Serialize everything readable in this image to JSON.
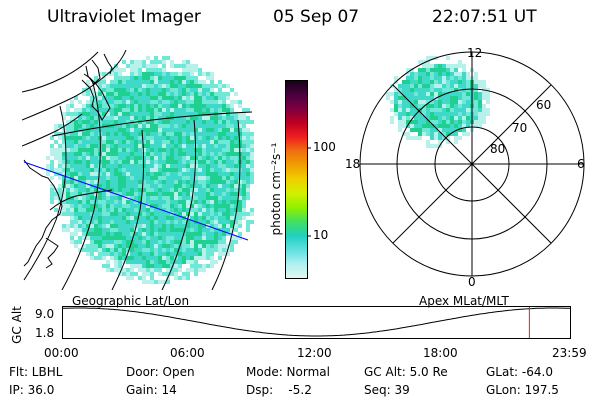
{
  "header": {
    "instrument": "Ultraviolet Imager",
    "date": "05 Sep 07",
    "time": "22:07:51 UT"
  },
  "colorbar": {
    "label": "photon cm⁻²s⁻¹",
    "ticks": [
      "100",
      "10"
    ],
    "colors": [
      "#1a0018",
      "#4a0040",
      "#800040",
      "#c00020",
      "#f02020",
      "#f07010",
      "#f0a000",
      "#f0d000",
      "#d0f000",
      "#90f000",
      "#40e060",
      "#20d0c0",
      "#60e0e0",
      "#b0f0f0",
      "#e0f8f0"
    ]
  },
  "geo_map": {
    "label": "Geographic Lat/Lon",
    "grid_color": "#000000",
    "track_color": "#0000ff",
    "aurora_colors": [
      "#40d8c8",
      "#20d090",
      "#70e8d8",
      "#b8f0ec"
    ]
  },
  "polar_map": {
    "label": "Apex MLat/MLT",
    "mlt_labels": {
      "top": "12",
      "left": "18",
      "right": "6",
      "bottom": "0"
    },
    "lat_labels": [
      "60",
      "70",
      "80"
    ]
  },
  "orbit_plot": {
    "ylabel": "GC Alt",
    "ytick_top": "9.0",
    "ytick_bottom": "1.8",
    "xticks": [
      "00:00",
      "06:00",
      "12:00",
      "18:00",
      "23:59"
    ],
    "cursor_color": "#e02020",
    "current_time_fraction": 0.92
  },
  "status": {
    "flt": "Flt: LBHL",
    "ip": "IP: 36.0",
    "door": "Door: Open",
    "gain": "Gain: 14",
    "mode": "Mode: Normal",
    "dsp": "Dsp:    -5.2",
    "gc_alt": "GC Alt: 5.0 Re",
    "seq": "Seq: 39",
    "glat": "GLat: -64.0",
    "glon": "GLon: 197.5"
  }
}
